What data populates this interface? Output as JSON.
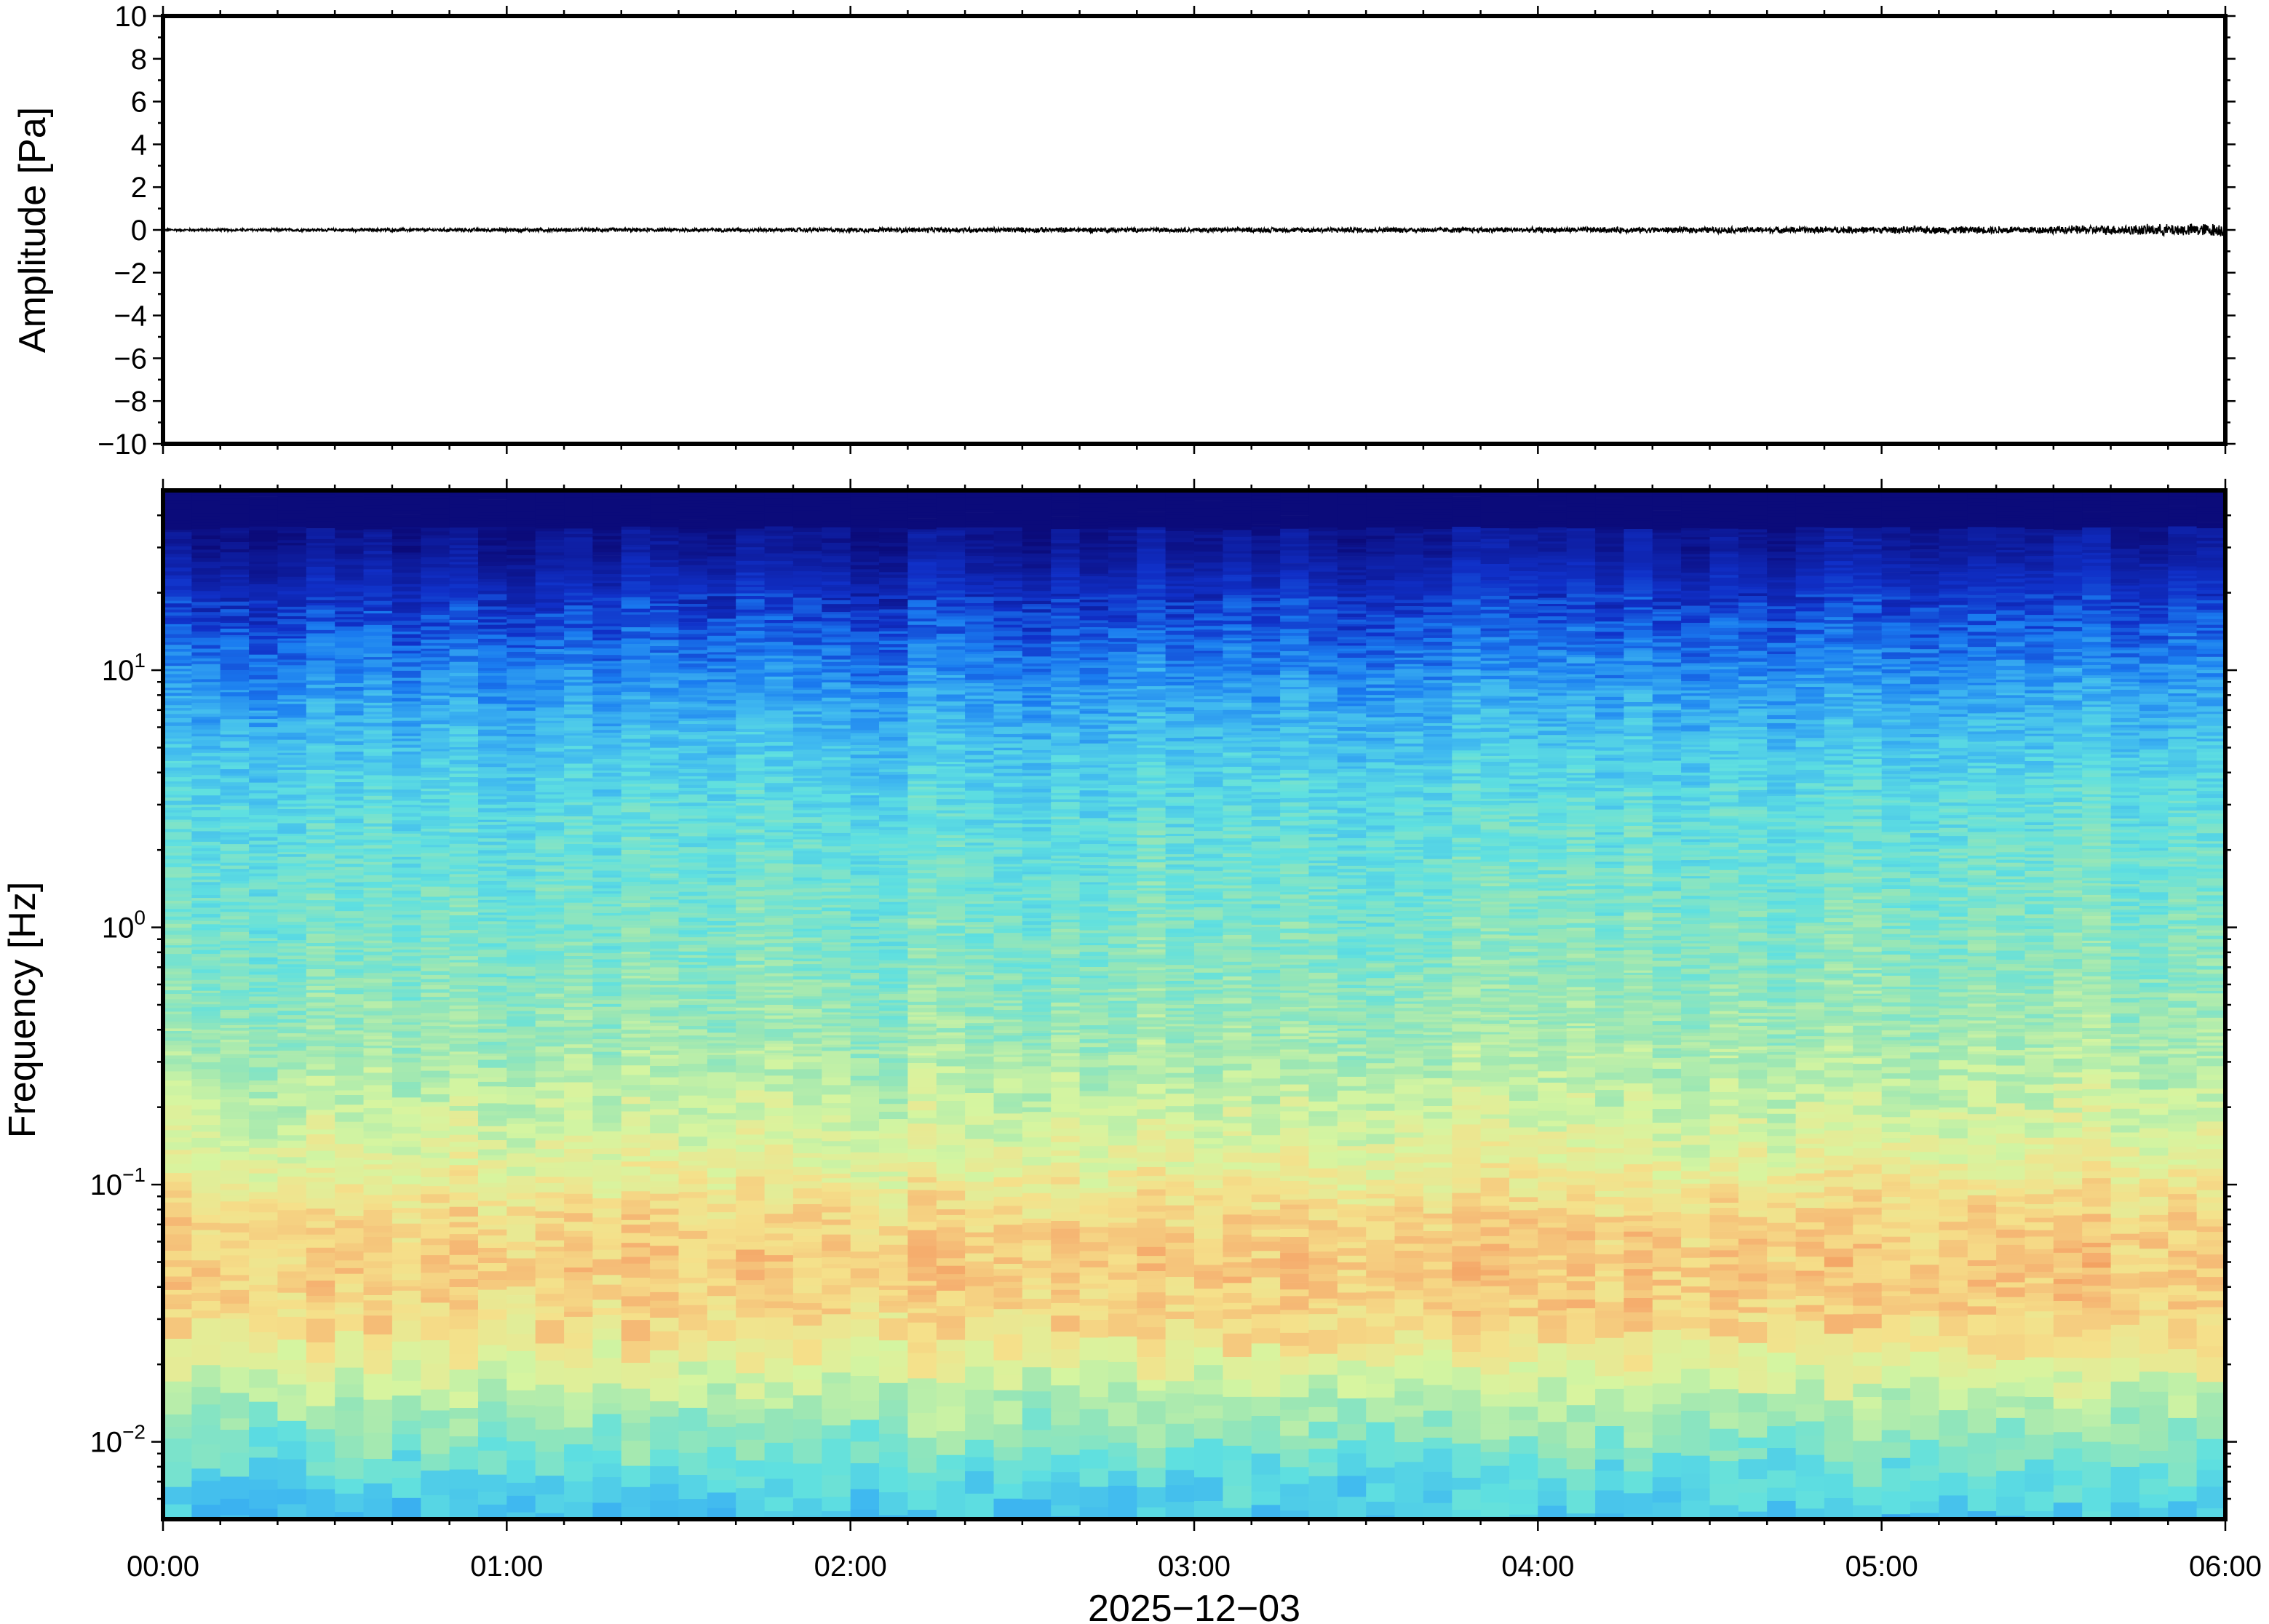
{
  "chart_data": [
    {
      "type": "line",
      "title": "",
      "ylabel": "Amplitude [Pa]",
      "ylim": [
        -10,
        10
      ],
      "yticks": [
        "10",
        "8",
        "6",
        "4",
        "2",
        "0",
        "−2",
        "−4",
        "−6",
        "−8",
        "−10"
      ],
      "ytick_values": [
        10,
        8,
        6,
        4,
        2,
        0,
        -2,
        -4,
        -6,
        -8,
        -10
      ],
      "xlim": [
        "00:00",
        "06:00"
      ],
      "series": [
        {
          "color": "#000000",
          "x": [
            "00:00",
            "00:30",
            "01:00",
            "01:30",
            "02:00",
            "02:30",
            "03:00",
            "03:30",
            "04:00",
            "04:30",
            "05:00",
            "05:30",
            "06:00"
          ],
          "y_envelope": [
            0.06,
            0.08,
            0.1,
            0.1,
            0.12,
            0.14,
            0.12,
            0.14,
            0.14,
            0.16,
            0.18,
            0.2,
            0.35
          ]
        }
      ],
      "grid": false
    },
    {
      "type": "heatmap",
      "title": "",
      "ylabel": "Frequency [Hz]",
      "xlabel": "2025−12−03",
      "yscale": "log",
      "ylim": [
        0.005,
        50
      ],
      "yticks": [
        {
          "base": "10",
          "exp": "1",
          "value": 10
        },
        {
          "base": "10",
          "exp": "0",
          "value": 1
        },
        {
          "base": "10",
          "exp": "−1",
          "value": 0.1
        },
        {
          "base": "10",
          "exp": "−2",
          "value": 0.01
        }
      ],
      "xticks": [
        "00:00",
        "01:00",
        "02:00",
        "03:00",
        "04:00",
        "05:00",
        "06:00"
      ],
      "xlim": [
        "00:00",
        "06:00"
      ],
      "colormap": [
        "#0b0b7a",
        "#1030c8",
        "#1a7cf0",
        "#3fb8f0",
        "#5fe0e0",
        "#9ae6b4",
        "#d6f5a0",
        "#f5e08a",
        "#f5b070",
        "#f08a4a"
      ],
      "profile": {
        "freq_hz": [
          50,
          30,
          20,
          12,
          8,
          5,
          3,
          1.5,
          0.8,
          0.4,
          0.2,
          0.12,
          0.08,
          0.05,
          0.03,
          0.02,
          0.012,
          0.007,
          0.005
        ],
        "level": [
          0.0,
          0.03,
          0.1,
          0.2,
          0.28,
          0.36,
          0.42,
          0.47,
          0.5,
          0.55,
          0.63,
          0.7,
          0.78,
          0.82,
          0.78,
          0.66,
          0.52,
          0.4,
          0.33
        ]
      },
      "grid": false
    }
  ]
}
